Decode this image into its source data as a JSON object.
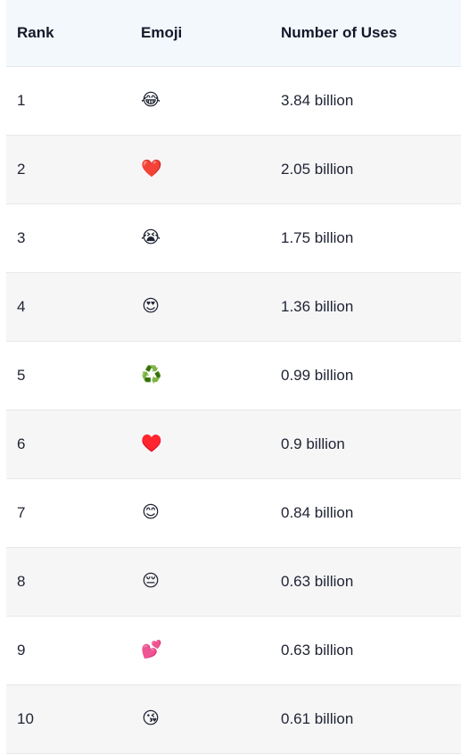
{
  "table": {
    "headers": {
      "rank": "Rank",
      "emoji": "Emoji",
      "uses": "Number of Uses"
    },
    "rows": [
      {
        "rank": "1",
        "emoji": "😂",
        "emoji_name": "face-with-tears-of-joy-icon",
        "uses": "3.84 billion"
      },
      {
        "rank": "2",
        "emoji": "❤️",
        "emoji_name": "red-heart-icon",
        "uses": "2.05 billion"
      },
      {
        "rank": "3",
        "emoji": "😭",
        "emoji_name": "loudly-crying-face-icon",
        "uses": "1.75 billion"
      },
      {
        "rank": "4",
        "emoji": "😍",
        "emoji_name": "heart-eyes-face-icon",
        "uses": "1.36 billion"
      },
      {
        "rank": "5",
        "emoji": "♻️",
        "emoji_name": "recycling-symbol-icon",
        "uses": "0.99 billion"
      },
      {
        "rank": "6",
        "emoji": "♥️",
        "emoji_name": "heart-suit-icon",
        "uses": "0.9 billion"
      },
      {
        "rank": "7",
        "emoji": "😊",
        "emoji_name": "smiling-face-icon",
        "uses": "0.84 billion"
      },
      {
        "rank": "8",
        "emoji": "😔",
        "emoji_name": "pensive-face-icon",
        "uses": "0.63 billion"
      },
      {
        "rank": "9",
        "emoji": "💕",
        "emoji_name": "two-hearts-icon",
        "uses": "0.63 billion"
      },
      {
        "rank": "10",
        "emoji": "😘",
        "emoji_name": "face-blowing-kiss-icon",
        "uses": "0.61 billion"
      }
    ]
  }
}
